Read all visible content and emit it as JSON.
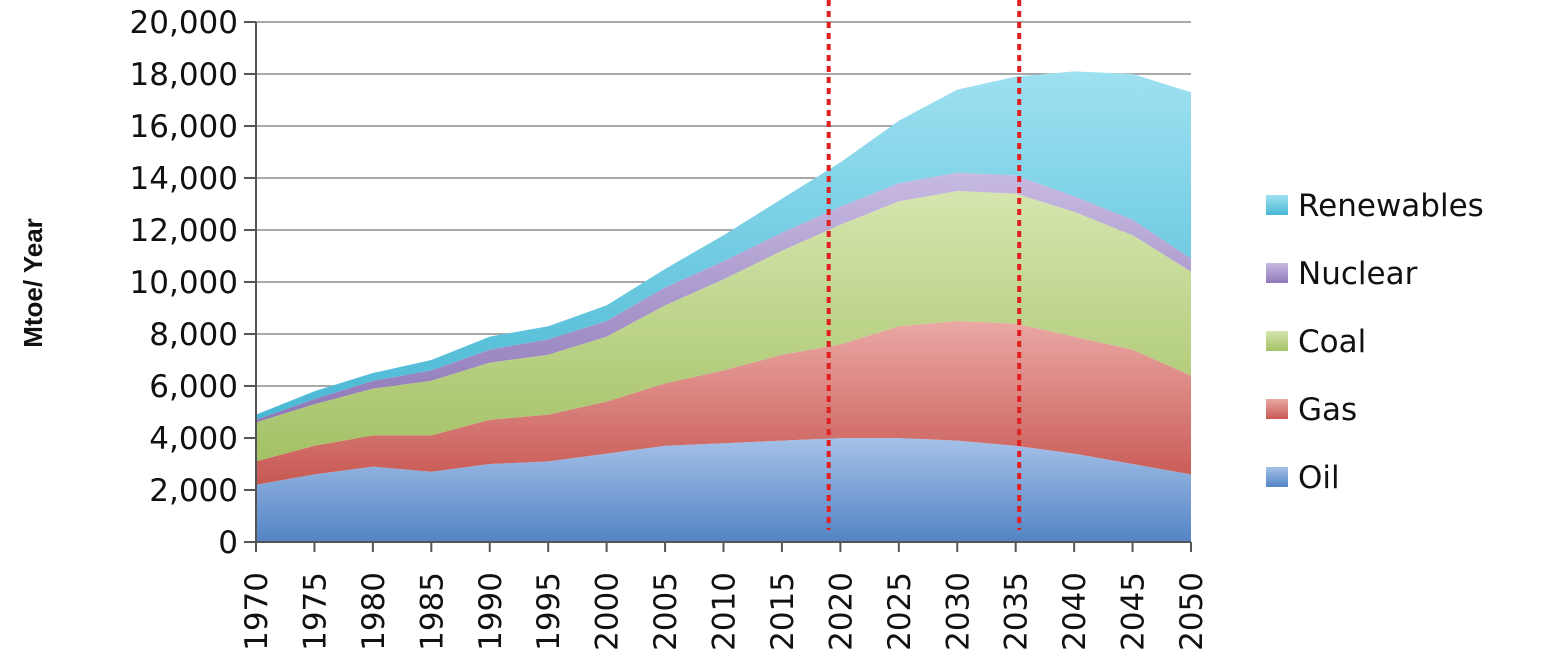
{
  "chart_data": {
    "type": "area",
    "stacked": true,
    "title": "",
    "xlabel": "",
    "ylabel": "Mtoe/ Year",
    "ylim": [
      0,
      20000
    ],
    "ytick_step": 2000,
    "yticks": [
      "0",
      "2,000",
      "4,000",
      "6,000",
      "8,000",
      "10,000",
      "12,000",
      "14,000",
      "16,000",
      "18,000",
      "20,000"
    ],
    "grid": true,
    "x": [
      "1970",
      "1975",
      "1980",
      "1985",
      "1990",
      "1995",
      "2000",
      "2005",
      "2010",
      "2015",
      "2020",
      "2025",
      "2030",
      "2035",
      "2040",
      "2045",
      "2050"
    ],
    "series": [
      {
        "name": "Oil",
        "color": "#5b8fd6",
        "values": [
          2200,
          2600,
          2900,
          2700,
          3000,
          3100,
          3400,
          3700,
          3800,
          3900,
          4000,
          4000,
          3900,
          3700,
          3400,
          3000,
          2600
        ]
      },
      {
        "name": "Gas",
        "color": "#d9605a",
        "values": [
          900,
          1100,
          1200,
          1400,
          1700,
          1800,
          2000,
          2400,
          2800,
          3300,
          3600,
          4300,
          4600,
          4700,
          4500,
          4400,
          3800
        ]
      },
      {
        "name": "Coal",
        "color": "#b2d26e",
        "values": [
          1500,
          1600,
          1800,
          2100,
          2200,
          2300,
          2500,
          3000,
          3500,
          4000,
          4600,
          4800,
          5000,
          5000,
          4800,
          4400,
          4000
        ]
      },
      {
        "name": "Nuclear",
        "color": "#9a82c8",
        "values": [
          100,
          200,
          300,
          400,
          500,
          600,
          600,
          700,
          700,
          700,
          700,
          700,
          700,
          700,
          600,
          600,
          500
        ]
      },
      {
        "name": "Renewables",
        "color": "#4fc8e6",
        "values": [
          200,
          300,
          300,
          400,
          500,
          500,
          600,
          700,
          1000,
          1300,
          1700,
          2400,
          3200,
          3800,
          4800,
          5600,
          6400
        ]
      }
    ],
    "legend_order": [
      "Renewables",
      "Nuclear",
      "Coal",
      "Gas",
      "Oil"
    ],
    "legend_position": "right",
    "vertical_markers": [
      {
        "x": 2019,
        "style": "dotted",
        "color": "#e02020"
      },
      {
        "x": 2035.3,
        "style": "dotted",
        "color": "#e02020"
      }
    ]
  }
}
